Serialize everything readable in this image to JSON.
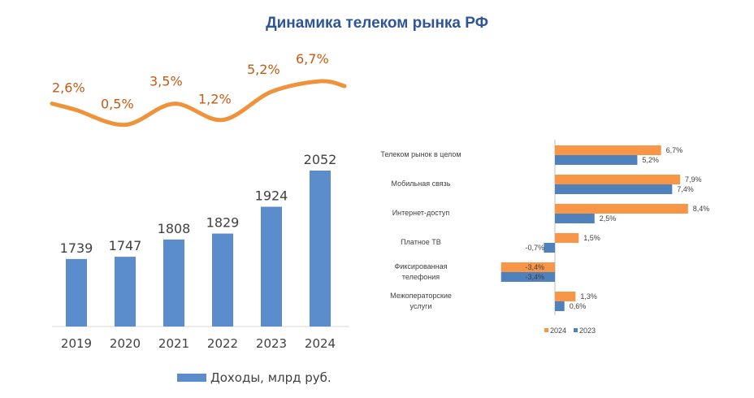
{
  "title": "Динамика телеком рынка РФ",
  "colors": {
    "title": "#2f5597",
    "revenue_bar": "#5b8ccb",
    "growth_line": "#f0923a",
    "growth_label": "#c55a11",
    "series_2024": "#f79646",
    "series_2023": "#4f81bd",
    "text": "#404040"
  },
  "chart_data": [
    {
      "type": "bar",
      "categories": [
        "2019",
        "2020",
        "2021",
        "2022",
        "2023",
        "2024"
      ],
      "series": [
        {
          "name": "Доходы, млрд руб.",
          "values": [
            1739,
            1747,
            1808,
            1829,
            1924,
            2052
          ]
        }
      ],
      "value_labels": [
        "1739",
        "1747",
        "1808",
        "1829",
        "1924",
        "2052"
      ],
      "legend": "bottom"
    },
    {
      "type": "line",
      "categories": [
        "2019",
        "2020",
        "2021",
        "2022",
        "2023",
        "2024"
      ],
      "values": [
        2.6,
        0.5,
        3.5,
        1.2,
        5.2,
        6.7
      ],
      "value_labels": [
        "2,6%",
        "0,5%",
        "3,5%",
        "1,2%",
        "5,2%",
        "6,7%"
      ],
      "smooth": true
    },
    {
      "type": "bar",
      "orientation": "horizontal",
      "categories": [
        [
          "Телеком рынок в целом"
        ],
        [
          "Мобильная связь"
        ],
        [
          "Интернет-доступ"
        ],
        [
          "Платное ТВ"
        ],
        [
          "Фиксированная",
          "телефония"
        ],
        [
          "Межоператорские",
          "услуги"
        ]
      ],
      "series": [
        {
          "name": "2024",
          "values": [
            6.7,
            7.9,
            8.4,
            1.5,
            -3.4,
            1.3
          ],
          "value_labels": [
            "6,7%",
            "7,9%",
            "8,4%",
            "1,5%",
            "-3,4%",
            "1,3%"
          ]
        },
        {
          "name": "2023",
          "values": [
            5.2,
            7.4,
            2.5,
            -0.7,
            -3.4,
            0.6
          ],
          "value_labels": [
            "5,2%",
            "7,4%",
            "2,5%",
            "-0,7%",
            "-3,4%",
            "0,6%"
          ]
        }
      ],
      "legend": "bottom"
    }
  ]
}
